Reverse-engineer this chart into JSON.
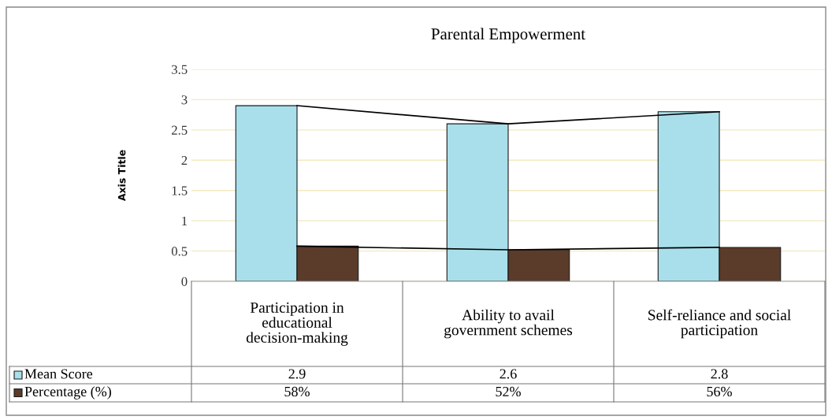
{
  "chart_data": {
    "type": "bar",
    "title": "Parental Empowerment",
    "ylabel": "Axis Title",
    "categories": [
      "Participation in educational decision-making",
      "Ability to avail government schemes",
      "Self-reliance and social participation"
    ],
    "series": [
      {
        "name": "Mean Score",
        "color": "#a9dfea",
        "values": [
          2.9,
          2.6,
          2.8
        ],
        "value_labels": [
          "2.9",
          "2.6",
          "2.8"
        ]
      },
      {
        "name": "Percentage (%)",
        "color": "#5b3b2a",
        "values": [
          0.58,
          0.52,
          0.56
        ],
        "value_labels": [
          "58%",
          "52%",
          "56%"
        ]
      },
      {
        "type": "line",
        "color": "#000000",
        "values": [
          2.9,
          2.6,
          2.8
        ]
      },
      {
        "type": "line",
        "color": "#000000",
        "values": [
          0.58,
          0.52,
          0.56
        ]
      }
    ],
    "ylim": [
      0,
      3.5
    ],
    "yticks": [
      0,
      0.5,
      1,
      1.5,
      2,
      2.5,
      3,
      3.5
    ],
    "grid": "y",
    "legend": "bottom"
  }
}
